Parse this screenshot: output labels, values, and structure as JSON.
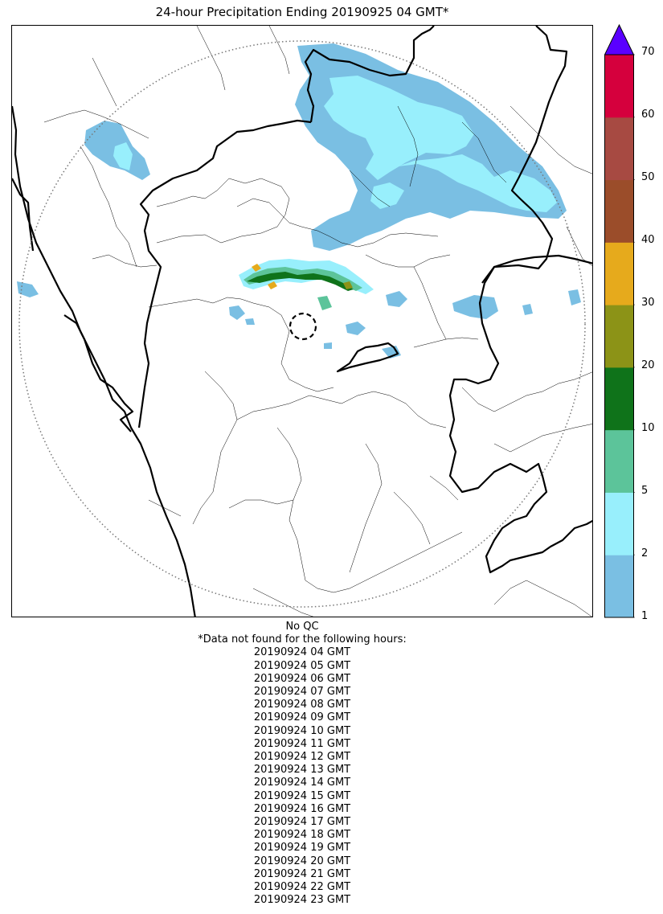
{
  "title": "24-hour Precipitation Ending 20190925 04 GMT*",
  "legend": {
    "tick_labels": [
      "1",
      "2",
      "5",
      "10",
      "20",
      "30",
      "40",
      "50",
      "60",
      "70"
    ],
    "bins": [
      {
        "range": "1-2",
        "color": "#7abfe3"
      },
      {
        "range": "2-5",
        "color": "#98effc"
      },
      {
        "range": "5-10",
        "color": "#5cc49a"
      },
      {
        "range": "10-20",
        "color": "#0f731a"
      },
      {
        "range": "20-30",
        "color": "#8c9317"
      },
      {
        "range": "30-40",
        "color": "#e6aa1c"
      },
      {
        "range": "40-50",
        "color": "#9b4d2a"
      },
      {
        "range": "50-60",
        "color": "#a74a42"
      },
      {
        "range": "60-70",
        "color": "#d5003d"
      },
      {
        "range": ">70",
        "color": "#5a00ff"
      }
    ]
  },
  "notes": {
    "qc": "No QC",
    "missing_header": "*Data not found for the following hours:",
    "missing_hours": [
      "20190924 04 GMT",
      "20190924 05 GMT",
      "20190924 06 GMT",
      "20190924 07 GMT",
      "20190924 08 GMT",
      "20190924 09 GMT",
      "20190924 10 GMT",
      "20190924 11 GMT",
      "20190924 12 GMT",
      "20190924 13 GMT",
      "20190924 14 GMT",
      "20190924 15 GMT",
      "20190924 16 GMT",
      "20190924 17 GMT",
      "20190924 18 GMT",
      "20190924 19 GMT",
      "20190924 20 GMT",
      "20190924 21 GMT",
      "20190924 22 GMT",
      "20190924 23 GMT"
    ]
  },
  "map": {
    "radar_range_ring": "dotted",
    "radar_center_marker": "dashed-circle"
  }
}
